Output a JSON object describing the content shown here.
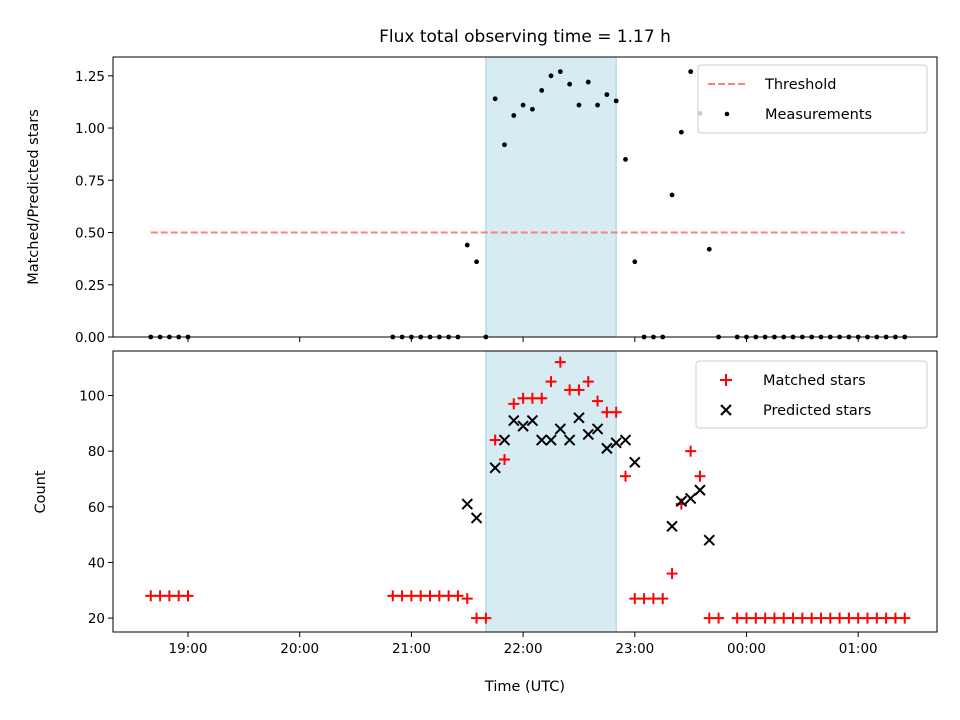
{
  "chart_data": [
    {
      "type": "scatter",
      "title": "Flux total observing time = 1.17 h",
      "xlabel": "",
      "ylabel": "Matched/Predicted stars",
      "ylim": [
        0,
        1.34
      ],
      "x_ticks": [
        "19:00",
        "20:00",
        "21:00",
        "22:00",
        "23:00",
        "00:00",
        "01:00"
      ],
      "y_ticks": [
        "0.00",
        "0.25",
        "0.50",
        "0.75",
        "1.00",
        "1.25"
      ],
      "y_tick_values": [
        0,
        0.25,
        0.5,
        0.75,
        1.0,
        1.25
      ],
      "highlight_span": [
        "21:40",
        "22:50"
      ],
      "legend": {
        "position": "top-right",
        "entries": [
          "Threshold",
          "Measurements"
        ]
      },
      "threshold": {
        "name": "Threshold",
        "value": 0.5,
        "x_range": [
          "18:40",
          "01:25"
        ],
        "color": "#ff7f7f"
      },
      "series": [
        {
          "name": "Measurements",
          "color": "#000000",
          "points": [
            [
              "18:40",
              0
            ],
            [
              "18:45",
              0
            ],
            [
              "18:50",
              0
            ],
            [
              "18:55",
              0
            ],
            [
              "19:00",
              0
            ],
            [
              "20:50",
              0
            ],
            [
              "20:55",
              0
            ],
            [
              "21:00",
              0
            ],
            [
              "21:05",
              0
            ],
            [
              "21:10",
              0
            ],
            [
              "21:15",
              0
            ],
            [
              "21:20",
              0
            ],
            [
              "21:25",
              0
            ],
            [
              "21:30",
              0.44
            ],
            [
              "21:35",
              0.36
            ],
            [
              "21:40",
              0
            ],
            [
              "21:45",
              1.14
            ],
            [
              "21:50",
              0.92
            ],
            [
              "21:55",
              1.06
            ],
            [
              "22:00",
              1.11
            ],
            [
              "22:05",
              1.09
            ],
            [
              "22:10",
              1.18
            ],
            [
              "22:15",
              1.25
            ],
            [
              "22:20",
              1.27
            ],
            [
              "22:25",
              1.21
            ],
            [
              "22:30",
              1.11
            ],
            [
              "22:35",
              1.22
            ],
            [
              "22:40",
              1.11
            ],
            [
              "22:45",
              1.16
            ],
            [
              "22:50",
              1.13
            ],
            [
              "22:55",
              0.85
            ],
            [
              "23:00",
              0.36
            ],
            [
              "23:05",
              0
            ],
            [
              "23:10",
              0
            ],
            [
              "23:15",
              0
            ],
            [
              "23:20",
              0.68
            ],
            [
              "23:25",
              0.98
            ],
            [
              "23:30",
              1.27
            ],
            [
              "23:35",
              1.07
            ],
            [
              "23:40",
              0.42
            ],
            [
              "23:45",
              0
            ],
            [
              "23:55",
              0
            ],
            [
              "00:00",
              0
            ],
            [
              "00:05",
              0
            ],
            [
              "00:10",
              0
            ],
            [
              "00:15",
              0
            ],
            [
              "00:20",
              0
            ],
            [
              "00:25",
              0
            ],
            [
              "00:30",
              0
            ],
            [
              "00:35",
              0
            ],
            [
              "00:40",
              0
            ],
            [
              "00:45",
              0
            ],
            [
              "00:50",
              0
            ],
            [
              "00:55",
              0
            ],
            [
              "01:00",
              0
            ],
            [
              "01:05",
              0
            ],
            [
              "01:10",
              0
            ],
            [
              "01:15",
              0
            ],
            [
              "01:20",
              0
            ],
            [
              "01:25",
              0
            ]
          ]
        }
      ]
    },
    {
      "type": "scatter",
      "title": "",
      "xlabel": "Time (UTC)",
      "ylabel": "Count",
      "ylim": [
        15,
        116
      ],
      "x_ticks": [
        "19:00",
        "20:00",
        "21:00",
        "22:00",
        "23:00",
        "00:00",
        "01:00"
      ],
      "y_ticks": [
        "20",
        "40",
        "60",
        "80",
        "100"
      ],
      "y_tick_values": [
        20,
        40,
        60,
        80,
        100
      ],
      "highlight_span": [
        "21:40",
        "22:50"
      ],
      "legend": {
        "position": "top-right",
        "entries": [
          "Matched stars",
          "Predicted stars"
        ]
      },
      "series": [
        {
          "name": "Matched stars",
          "marker": "plus",
          "color": "#ff0000",
          "points": [
            [
              "18:40",
              28
            ],
            [
              "18:45",
              28
            ],
            [
              "18:50",
              28
            ],
            [
              "18:55",
              28
            ],
            [
              "19:00",
              28
            ],
            [
              "20:50",
              28
            ],
            [
              "20:55",
              28
            ],
            [
              "21:00",
              28
            ],
            [
              "21:05",
              28
            ],
            [
              "21:10",
              28
            ],
            [
              "21:15",
              28
            ],
            [
              "21:20",
              28
            ],
            [
              "21:25",
              28
            ],
            [
              "21:30",
              27
            ],
            [
              "21:35",
              20
            ],
            [
              "21:40",
              20
            ],
            [
              "21:45",
              84
            ],
            [
              "21:50",
              77
            ],
            [
              "21:55",
              97
            ],
            [
              "22:00",
              99
            ],
            [
              "22:05",
              99
            ],
            [
              "22:10",
              99
            ],
            [
              "22:15",
              105
            ],
            [
              "22:20",
              112
            ],
            [
              "22:25",
              102
            ],
            [
              "22:30",
              102
            ],
            [
              "22:35",
              105
            ],
            [
              "22:40",
              98
            ],
            [
              "22:45",
              94
            ],
            [
              "22:50",
              94
            ],
            [
              "22:55",
              71
            ],
            [
              "23:00",
              27
            ],
            [
              "23:05",
              27
            ],
            [
              "23:10",
              27
            ],
            [
              "23:15",
              27
            ],
            [
              "23:20",
              36
            ],
            [
              "23:25",
              61
            ],
            [
              "23:30",
              80
            ],
            [
              "23:35",
              71
            ],
            [
              "23:40",
              20
            ],
            [
              "23:45",
              20
            ],
            [
              "23:55",
              20
            ],
            [
              "00:00",
              20
            ],
            [
              "00:05",
              20
            ],
            [
              "00:10",
              20
            ],
            [
              "00:15",
              20
            ],
            [
              "00:20",
              20
            ],
            [
              "00:25",
              20
            ],
            [
              "00:30",
              20
            ],
            [
              "00:35",
              20
            ],
            [
              "00:40",
              20
            ],
            [
              "00:45",
              20
            ],
            [
              "00:50",
              20
            ],
            [
              "00:55",
              20
            ],
            [
              "01:00",
              20
            ],
            [
              "01:05",
              20
            ],
            [
              "01:10",
              20
            ],
            [
              "01:15",
              20
            ],
            [
              "01:20",
              20
            ],
            [
              "01:25",
              20
            ]
          ]
        },
        {
          "name": "Predicted stars",
          "marker": "x",
          "color": "#000000",
          "points": [
            [
              "21:30",
              61
            ],
            [
              "21:35",
              56
            ],
            [
              "21:45",
              74
            ],
            [
              "21:50",
              84
            ],
            [
              "21:55",
              91
            ],
            [
              "22:00",
              89
            ],
            [
              "22:05",
              91
            ],
            [
              "22:10",
              84
            ],
            [
              "22:15",
              84
            ],
            [
              "22:20",
              88
            ],
            [
              "22:25",
              84
            ],
            [
              "22:30",
              92
            ],
            [
              "22:35",
              86
            ],
            [
              "22:40",
              88
            ],
            [
              "22:45",
              81
            ],
            [
              "22:50",
              83
            ],
            [
              "22:55",
              84
            ],
            [
              "23:00",
              76
            ],
            [
              "23:20",
              53
            ],
            [
              "23:25",
              62
            ],
            [
              "23:30",
              63
            ],
            [
              "23:35",
              66
            ],
            [
              "23:40",
              48
            ]
          ]
        }
      ]
    }
  ]
}
